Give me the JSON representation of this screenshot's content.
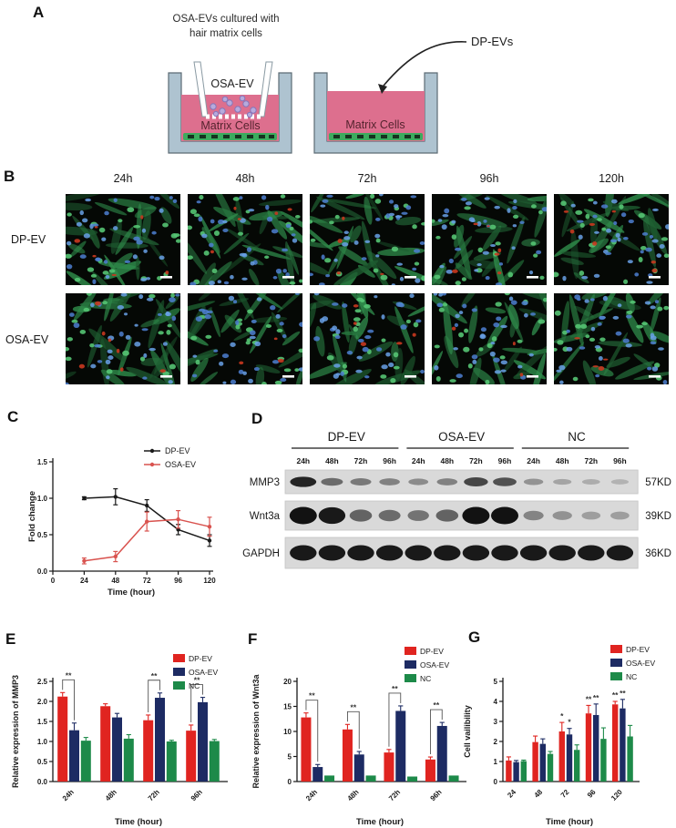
{
  "panels": {
    "a": "A",
    "b": "B",
    "c": "C",
    "d": "D",
    "e": "E",
    "f": "F",
    "g": "G"
  },
  "panel_a": {
    "caption_line1": "OSA-EVs cultured with",
    "caption_line2": "hair matrix cells",
    "insert_label": "OSA-EV",
    "left_dish_label": "Matrix Cells",
    "right_dish_label": "Matrix Cells",
    "dp_ev_label": "DP-EVs",
    "colors": {
      "dish_wall": "#aec3d0",
      "dish_outline": "#5c6b74",
      "medium_pink": "#dd6f8e",
      "matrix_green": "#3cab5e",
      "ev_purple": "#b7aadc",
      "ev_outline": "#8577bb",
      "matrix_text": "#55232e"
    }
  },
  "panel_b": {
    "timepoints": [
      "24h",
      "48h",
      "72h",
      "96h",
      "120h"
    ],
    "row_labels": [
      "DP-EV",
      "OSA-EV"
    ]
  },
  "western_blot": {
    "groups": [
      "DP-EV",
      "OSA-EV",
      "NC"
    ],
    "lane_times": [
      "24h",
      "48h",
      "72h",
      "96h"
    ],
    "rows": [
      {
        "protein": "MMP3",
        "weight": "57KD",
        "intensities": [
          0.9,
          0.5,
          0.42,
          0.38,
          0.32,
          0.38,
          0.7,
          0.65,
          0.28,
          0.18,
          0.14,
          0.1
        ]
      },
      {
        "protein": "Wnt3a",
        "weight": "39KD",
        "intensities": [
          1,
          0.95,
          0.55,
          0.5,
          0.45,
          0.55,
          1,
          1,
          0.35,
          0.28,
          0.22,
          0.22
        ]
      },
      {
        "protein": "GAPDH",
        "weight": "36KD",
        "intensities": [
          0.95,
          0.95,
          0.95,
          0.95,
          0.95,
          0.95,
          0.95,
          0.95,
          0.95,
          0.95,
          0.95,
          0.95
        ]
      }
    ]
  },
  "chart_data": [
    {
      "id": "C",
      "type": "line",
      "xlabel": "Time (hour)",
      "ylabel": "Fold change",
      "x": [
        24,
        48,
        72,
        96,
        120
      ],
      "xticks": [
        0,
        24,
        48,
        72,
        96,
        120
      ],
      "ylim": [
        0,
        1.5
      ],
      "yticks": [
        "0.0",
        "0.5",
        "1.0",
        "1.5"
      ],
      "legend_position": "top-right",
      "series": [
        {
          "name": "DP-EV",
          "color": "#1a1a1a",
          "values": [
            1.0,
            1.02,
            0.9,
            0.57,
            0.42
          ],
          "errors": [
            0.02,
            0.11,
            0.08,
            0.07,
            0.08
          ]
        },
        {
          "name": "OSA-EV",
          "color": "#d9534f",
          "values": [
            0.14,
            0.2,
            0.68,
            0.71,
            0.61
          ],
          "errors": [
            0.04,
            0.07,
            0.13,
            0.12,
            0.13
          ]
        }
      ]
    },
    {
      "id": "E",
      "type": "bar",
      "xlabel": "Time (hour)",
      "ylabel": "Relative expression of MMP3",
      "categories": [
        "24h",
        "48h",
        "72h",
        "96h"
      ],
      "ylim": [
        0,
        2.5
      ],
      "yticks": [
        "0.0",
        "0.5",
        "1.0",
        "1.5",
        "2.0",
        "2.5"
      ],
      "legend_position": "top-right",
      "series": [
        {
          "name": "DP-EV",
          "color": "#e02420",
          "values": [
            2.12,
            1.88,
            1.53,
            1.27
          ],
          "errors": [
            0.1,
            0.06,
            0.13,
            0.14
          ]
        },
        {
          "name": "OSA-EV",
          "color": "#1d2b63",
          "values": [
            1.28,
            1.6,
            2.09,
            1.98
          ],
          "errors": [
            0.18,
            0.1,
            0.12,
            0.12
          ]
        },
        {
          "name": "NC",
          "color": "#1d8a49",
          "values": [
            1.02,
            1.07,
            1.0,
            1.01
          ],
          "errors": [
            0.08,
            0.1,
            0.03,
            0.04
          ]
        }
      ],
      "significance": [
        {
          "cat": 0,
          "s1": 0,
          "s2": 1,
          "label": "**"
        },
        {
          "cat": 2,
          "s1": 0,
          "s2": 1,
          "label": "**"
        },
        {
          "cat": 3,
          "s1": 0,
          "s2": 1,
          "label": "**"
        }
      ]
    },
    {
      "id": "F",
      "type": "bar",
      "xlabel": "Time (hour)",
      "ylabel": "Relative expression of Wnt3a",
      "categories": [
        "24h",
        "48h",
        "72h",
        "96h"
      ],
      "ylim": [
        0,
        20
      ],
      "yticks": [
        "0",
        "5",
        "10",
        "15",
        "20"
      ],
      "legend_position": "top-right",
      "series": [
        {
          "name": "DP-EV",
          "color": "#e02420",
          "values": [
            12.8,
            10.4,
            5.8,
            4.4
          ],
          "errors": [
            0.9,
            1.0,
            0.6,
            0.5
          ]
        },
        {
          "name": "OSA-EV",
          "color": "#1d2b63",
          "values": [
            2.9,
            5.4,
            14.1,
            11.1
          ],
          "errors": [
            0.5,
            0.6,
            1.0,
            0.7
          ]
        },
        {
          "name": "NC",
          "color": "#1d8a49",
          "values": [
            1.2,
            1.2,
            1.0,
            1.2
          ],
          "errors": [
            0,
            0,
            0,
            0
          ]
        }
      ],
      "significance": [
        {
          "cat": 0,
          "s1": 0,
          "s2": 1,
          "label": "**"
        },
        {
          "cat": 1,
          "s1": 0,
          "s2": 1,
          "label": "**"
        },
        {
          "cat": 2,
          "s1": 0,
          "s2": 1,
          "label": "**"
        },
        {
          "cat": 3,
          "s1": 0,
          "s2": 1,
          "label": "**"
        }
      ]
    },
    {
      "id": "G",
      "type": "bar",
      "xlabel": "Time (hour)",
      "ylabel": "Cell vailibility",
      "categories": [
        "24",
        "48",
        "72",
        "96",
        "120"
      ],
      "ylim": [
        0,
        5
      ],
      "yticks": [
        "0",
        "1",
        "2",
        "3",
        "4",
        "5"
      ],
      "legend_position": "top-right",
      "series": [
        {
          "name": "DP-EV",
          "color": "#e02420",
          "values": [
            1.05,
            1.97,
            2.5,
            3.4,
            3.85
          ],
          "errors": [
            0.18,
            0.3,
            0.45,
            0.4,
            0.15
          ]
        },
        {
          "name": "OSA-EV",
          "color": "#1d2b63",
          "values": [
            0.97,
            1.88,
            2.35,
            3.32,
            3.65
          ],
          "errors": [
            0.08,
            0.25,
            0.3,
            0.55,
            0.45
          ]
        },
        {
          "name": "NC",
          "color": "#1d8a49",
          "values": [
            1.02,
            1.38,
            1.58,
            2.13,
            2.25
          ],
          "errors": [
            0.05,
            0.12,
            0.25,
            0.55,
            0.55
          ]
        }
      ],
      "bar_marks": [
        {
          "cat": 2,
          "series": 0,
          "label": "*"
        },
        {
          "cat": 2,
          "series": 1,
          "label": "*"
        },
        {
          "cat": 3,
          "series": 0,
          "label": "**"
        },
        {
          "cat": 3,
          "series": 1,
          "label": "**"
        },
        {
          "cat": 4,
          "series": 0,
          "label": "**"
        },
        {
          "cat": 4,
          "series": 1,
          "label": "**"
        }
      ]
    }
  ],
  "colors": {
    "dp_ev": "#e02420",
    "osa_ev": "#1d2b63",
    "nc": "#1d8a49"
  }
}
